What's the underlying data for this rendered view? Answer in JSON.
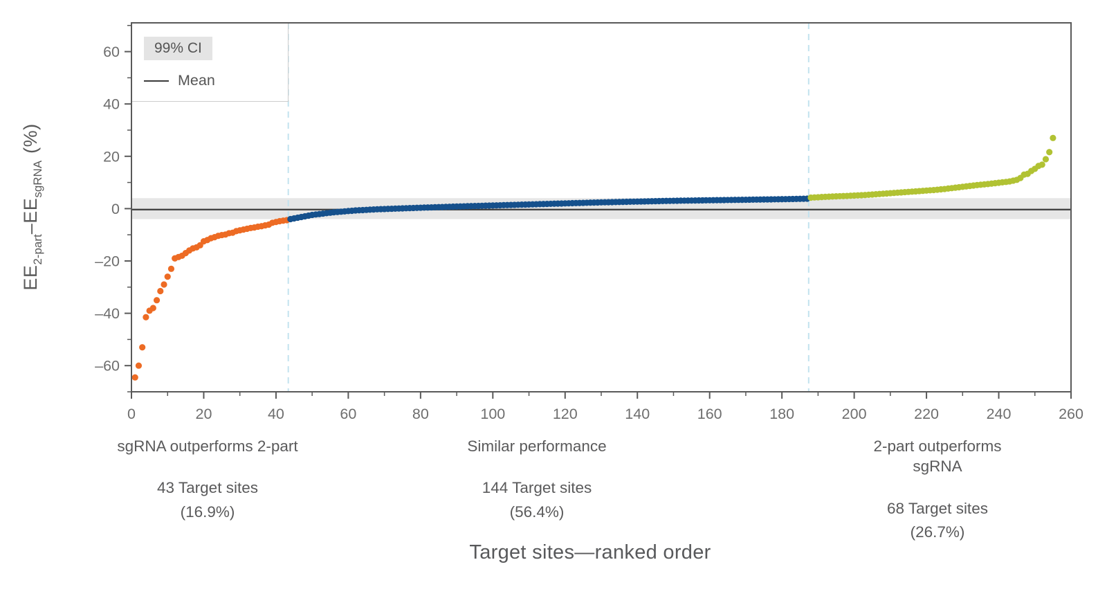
{
  "legend": {
    "ci_label": "99% CI",
    "mean_label": "Mean"
  },
  "ylabel": {
    "ee1": "EE",
    "sub1": "2-part",
    "ee2": "–EE",
    "sub2": "sgRNA",
    "pct": "(%)"
  },
  "xtitle": "Target sites—ranked order",
  "annotations": {
    "groups": [
      {
        "label": "sgRNA outperforms 2-part",
        "count": "43 Target sites",
        "pct": "(16.9%)"
      },
      {
        "label": "Similar performance",
        "count": "144 Target sites",
        "pct": "(56.4%)"
      },
      {
        "label": "2-part outperforms sgRNA",
        "count": "68 Target sites",
        "pct": "(26.7%)"
      }
    ]
  },
  "chart_data": {
    "type": "scatter",
    "xlabel": "Target sites—ranked order",
    "ylabel": "EE2-part – EEsgRNA (%)",
    "xlim": [
      0,
      260
    ],
    "ylim": [
      -70,
      71
    ],
    "grid": false,
    "legend_position": "top-left",
    "x_ticks": {
      "minor_step": 10,
      "major_step": 20,
      "labels": [
        0,
        20,
        40,
        60,
        80,
        100,
        120,
        140,
        160,
        180,
        200,
        220,
        240,
        260
      ]
    },
    "y_ticks": {
      "minor_step": 10,
      "major_step": 20,
      "values": [
        60,
        40,
        20,
        0,
        -20,
        -40,
        -60
      ],
      "labels": [
        "60",
        "40",
        "20",
        "0",
        "–20",
        "–40",
        "–60"
      ]
    },
    "mean_y": -0.35,
    "ci_band": [
      -4.0,
      4.0
    ],
    "boundaries_x": [
      43.4,
      187.4
    ],
    "colors": {
      "orange": "#ED6B24",
      "blue": "#15508C",
      "green": "#B1C233",
      "band": "#E6E6E6",
      "mean_line": "#3B3B3B",
      "dashed": "#C2E2EF",
      "axis": "#595959",
      "tick_label": "#6E6E6E"
    },
    "series": [
      {
        "name": "sgRNA outperforms 2-part",
        "color": "#ED6B24",
        "start_rank": 1,
        "values": [
          -64.5,
          -60.0,
          -53.0,
          -41.5,
          -39.0,
          -38.0,
          -35.0,
          -31.5,
          -29.0,
          -26.0,
          -23.0,
          -19.0,
          -18.5,
          -18.0,
          -17.0,
          -16.0,
          -15.2,
          -14.8,
          -14.0,
          -12.5,
          -12.0,
          -11.3,
          -10.9,
          -10.4,
          -10.1,
          -9.9,
          -9.4,
          -9.2,
          -8.6,
          -8.3,
          -8.0,
          -7.7,
          -7.4,
          -7.2,
          -6.9,
          -6.7,
          -6.4,
          -6.1,
          -5.4,
          -5.1,
          -4.8,
          -4.6,
          -4.4
        ]
      },
      {
        "name": "Similar performance",
        "color": "#15508C",
        "start_rank": 44,
        "values": [
          -4.0,
          -3.73,
          -3.47,
          -3.2,
          -2.93,
          -2.67,
          -2.4,
          -2.23,
          -2.07,
          -1.9,
          -1.73,
          -1.57,
          -1.4,
          -1.28,
          -1.17,
          -1.05,
          -0.93,
          -0.82,
          -0.7,
          -0.63,
          -0.55,
          -0.48,
          -0.4,
          -0.33,
          -0.25,
          -0.2,
          -0.15,
          -0.1,
          -0.05,
          0.0,
          0.05,
          0.1,
          0.15,
          0.2,
          0.25,
          0.3,
          0.35,
          0.4,
          0.44,
          0.48,
          0.53,
          0.58,
          0.62,
          0.66,
          0.71,
          0.76,
          0.8,
          0.84,
          0.88,
          0.92,
          0.96,
          1.0,
          1.04,
          1.08,
          1.12,
          1.16,
          1.2,
          1.24,
          1.28,
          1.32,
          1.36,
          1.4,
          1.44,
          1.48,
          1.52,
          1.56,
          1.6,
          1.64,
          1.68,
          1.72,
          1.76,
          1.8,
          1.84,
          1.88,
          1.92,
          1.96,
          2.0,
          2.04,
          2.08,
          2.12,
          2.16,
          2.2,
          2.24,
          2.28,
          2.32,
          2.36,
          2.4,
          2.43,
          2.46,
          2.49,
          2.52,
          2.55,
          2.58,
          2.61,
          2.64,
          2.67,
          2.7,
          2.73,
          2.76,
          2.79,
          2.82,
          2.85,
          2.88,
          2.91,
          2.94,
          2.97,
          3.0,
          3.02,
          3.04,
          3.06,
          3.08,
          3.1,
          3.12,
          3.14,
          3.16,
          3.18,
          3.2,
          3.22,
          3.24,
          3.26,
          3.28,
          3.3,
          3.32,
          3.34,
          3.36,
          3.38,
          3.4,
          3.42,
          3.44,
          3.46,
          3.48,
          3.5,
          3.52,
          3.54,
          3.56,
          3.58,
          3.6,
          3.63,
          3.66,
          3.69,
          3.71,
          3.74,
          3.77,
          3.8
        ]
      },
      {
        "name": "2-part outperforms sgRNA",
        "color": "#B1C233",
        "start_rank": 188,
        "values": [
          4.2,
          4.28,
          4.35,
          4.43,
          4.5,
          4.57,
          4.63,
          4.7,
          4.75,
          4.8,
          4.85,
          4.93,
          5.0,
          5.07,
          5.13,
          5.2,
          5.3,
          5.4,
          5.5,
          5.6,
          5.7,
          5.8,
          5.9,
          6.0,
          6.1,
          6.2,
          6.3,
          6.4,
          6.5,
          6.6,
          6.7,
          6.8,
          6.9,
          7.0,
          7.1,
          7.23,
          7.37,
          7.5,
          7.67,
          7.83,
          8.0,
          8.17,
          8.33,
          8.5,
          8.67,
          8.83,
          9.0,
          9.13,
          9.27,
          9.4,
          9.57,
          9.73,
          9.9,
          10.05,
          10.2,
          10.4,
          10.7,
          11.0,
          11.7,
          13.0,
          13.3,
          14.4,
          15.2,
          16.3,
          16.8,
          18.9,
          21.6,
          27.0
        ]
      }
    ],
    "segment_counts": [
      {
        "segment": "sgRNA outperforms 2-part",
        "target_sites": 43,
        "percent": 16.9
      },
      {
        "segment": "Similar performance",
        "target_sites": 144,
        "percent": 56.4
      },
      {
        "segment": "2-part outperforms sgRNA",
        "target_sites": 68,
        "percent": 26.7
      }
    ]
  }
}
